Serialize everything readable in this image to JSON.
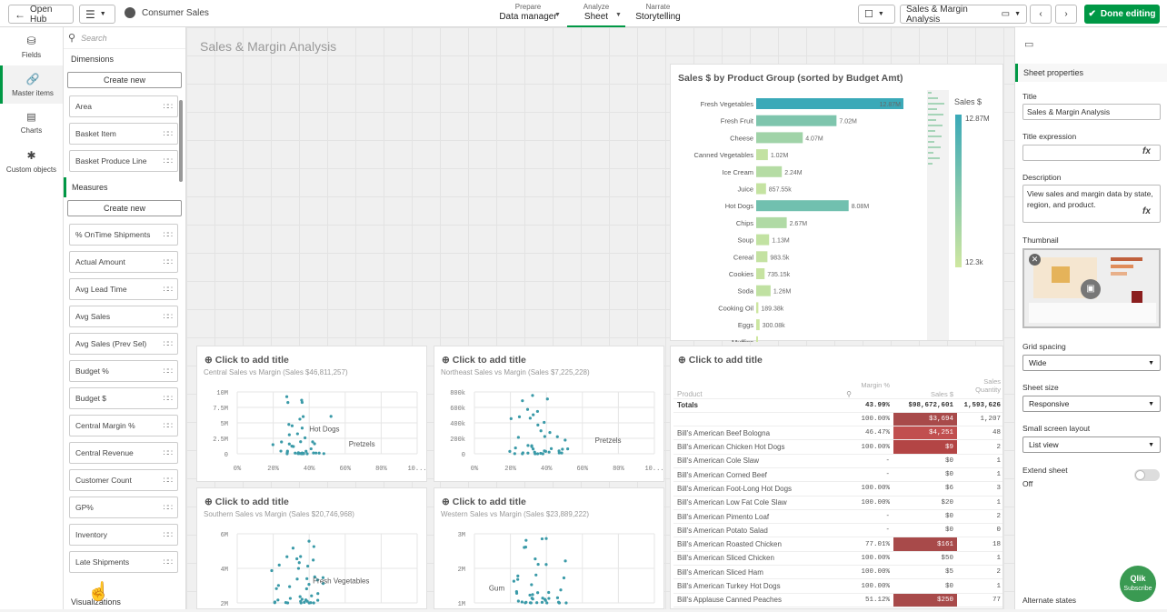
{
  "topbar": {
    "open_hub": "Open Hub",
    "app_name": "Consumer Sales",
    "prepare_label": "Prepare",
    "prepare_value": "Data manager",
    "analyze_label": "Analyze",
    "analyze_value": "Sheet",
    "narrate_label": "Narrate",
    "narrate_value": "Storytelling",
    "sheet_selector": "Sales & Margin Analysis",
    "done_editing": "Done editing"
  },
  "leftnav": {
    "items": [
      {
        "label": "Fields",
        "icon": "database-icon"
      },
      {
        "label": "Master items",
        "icon": "link-icon"
      },
      {
        "label": "Charts",
        "icon": "bar-chart-icon"
      },
      {
        "label": "Custom objects",
        "icon": "puzzle-icon"
      }
    ]
  },
  "assets": {
    "search_placeholder": "Search",
    "dimensions_label": "Dimensions",
    "create_new": "Create new",
    "dimensions": [
      "Area",
      "Basket Item",
      "Basket Produce Line"
    ],
    "measures_label": "Measures",
    "measures": [
      "% OnTime Shipments",
      "Actual Amount",
      "Avg Lead Time",
      "Avg Sales",
      "Avg Sales (Prev Sel)",
      "Budget %",
      "Budget $",
      "Central Margin %",
      "Central Revenue",
      "Customer Count",
      "GP%",
      "Inventory",
      "Late Shipments"
    ],
    "visualizations_label": "Visualizations"
  },
  "sheet": {
    "title": "Sales & Margin Analysis"
  },
  "barchart": {
    "title": "Sales $ by Product Group (sorted by Budget Amt)",
    "legend_title": "Sales $",
    "legend_max": "12.87M",
    "legend_min": "12.3k"
  },
  "chart_data": [
    {
      "type": "bar",
      "title": "Sales $ by Product Group (sorted by Budget Amt)",
      "categories": [
        "Fresh Vegetables",
        "Fresh Fruit",
        "Cheese",
        "Canned Vegetables",
        "Ice Cream",
        "Juice",
        "Hot Dogs",
        "Chips",
        "Soup",
        "Cereal",
        "Cookies",
        "Soda",
        "Cooking Oil",
        "Eggs",
        "Muffins"
      ],
      "values": [
        12870000,
        7020000,
        4070000,
        1020000,
        2240000,
        857550,
        8080000,
        2670000,
        1130000,
        983500,
        735150,
        1260000,
        189380,
        300080,
        0
      ],
      "value_labels": [
        "12.87M",
        "7.02M",
        "4.07M",
        "1.02M",
        "2.24M",
        "857.55k",
        "8.08M",
        "2.67M",
        "1.13M",
        "983.5k",
        "735.15k",
        "1.26M",
        "189.38k",
        "300.08k",
        ""
      ]
    },
    {
      "type": "scatter",
      "subtitle": "Central Sales vs Margin (Sales $46,811,257)",
      "y_ticks": [
        "10M",
        "7.5M",
        "5M",
        "2.5M",
        "0"
      ],
      "x_ticks": [
        "0%",
        "20%",
        "40%",
        "60%",
        "80%",
        "10..."
      ],
      "labels": [
        "Hot Dogs",
        "Pretzels"
      ]
    },
    {
      "type": "scatter",
      "subtitle": "Northeast Sales vs Margin (Sales $7,225,228)",
      "y_ticks": [
        "800k",
        "600k",
        "400k",
        "200k",
        "0"
      ],
      "x_ticks": [
        "0%",
        "20%",
        "40%",
        "60%",
        "80%",
        "10..."
      ],
      "labels": [
        "Pretzels"
      ]
    },
    {
      "type": "scatter",
      "subtitle": "Southern Sales vs Margin (Sales $20,746,968)",
      "y_ticks": [
        "6M",
        "4M",
        "2M"
      ],
      "labels": [
        "Fresh Vegetables"
      ]
    },
    {
      "type": "scatter",
      "subtitle": "Western Sales vs Margin (Sales $23,889,222)",
      "y_ticks": [
        "3M",
        "2M",
        "1M"
      ],
      "labels": [
        "Gum"
      ]
    }
  ],
  "cards": {
    "click_title": "Click to add title",
    "central_sub": "Central Sales vs Margin (Sales $46,811,257)",
    "northeast_sub": "Northeast Sales vs Margin (Sales $7,225,228)",
    "southern_sub": "Southern Sales vs Margin (Sales $20,746,968)",
    "western_sub": "Western Sales vs Margin (Sales $23,889,222)",
    "central_y": [
      "10M",
      "7.5M",
      "5M",
      "2.5M",
      "0"
    ],
    "northeast_y": [
      "800k",
      "600k",
      "400k",
      "200k",
      "0"
    ],
    "southern_y": [
      "6M",
      "4M",
      "2M"
    ],
    "western_y": [
      "3M",
      "2M",
      "1M"
    ],
    "x_ticks": [
      "0%",
      "20%",
      "40%",
      "60%",
      "80%",
      "10..."
    ],
    "label_hotdogs": "Hot Dogs",
    "label_pretzels": "Pretzels",
    "label_freshveg": "Fresh Vegetables",
    "label_gum": "Gum"
  },
  "table": {
    "title": "Click to add title",
    "col_product": "Product",
    "col_margin": "Margin %",
    "col_sales": "Sales $",
    "col_qty": "Sales Quantity",
    "totals": {
      "label": "Totals",
      "margin": "43.99%",
      "sales": "$98,672,601",
      "qty": "1,593,626"
    },
    "rows": [
      {
        "product": "",
        "margin": "100.00%",
        "sales": "$3,694",
        "qty": "1,207",
        "hl": "red"
      },
      {
        "product": "Bill's American Beef Bologna",
        "margin": "46.47%",
        "sales": "$4,251",
        "qty": "48",
        "hl": "red2"
      },
      {
        "product": "Bill's American Chicken Hot Dogs",
        "margin": "100.00%",
        "sales": "$9",
        "qty": "2",
        "hl": "red3"
      },
      {
        "product": "Bill's American Cole Slaw",
        "margin": "-",
        "sales": "$0",
        "qty": "1",
        "hl": ""
      },
      {
        "product": "Bill's American Corned Beef",
        "margin": "-",
        "sales": "$0",
        "qty": "1",
        "hl": ""
      },
      {
        "product": "Bill's American Foot-Long Hot Dogs",
        "margin": "100.00%",
        "sales": "$6",
        "qty": "3",
        "hl": ""
      },
      {
        "product": "Bill's American Low Fat Cole Slaw",
        "margin": "100.00%",
        "sales": "$20",
        "qty": "1",
        "hl": ""
      },
      {
        "product": "Bill's American Pimento Loaf",
        "margin": "-",
        "sales": "$0",
        "qty": "2",
        "hl": ""
      },
      {
        "product": "Bill's American Potato Salad",
        "margin": "-",
        "sales": "$0",
        "qty": "0",
        "hl": ""
      },
      {
        "product": "Bill's American Roasted Chicken",
        "margin": "77.01%",
        "sales": "$161",
        "qty": "18",
        "hl": "red"
      },
      {
        "product": "Bill's American Sliced Chicken",
        "margin": "100.00%",
        "sales": "$50",
        "qty": "1",
        "hl": ""
      },
      {
        "product": "Bill's American Sliced Ham",
        "margin": "100.00%",
        "sales": "$5",
        "qty": "2",
        "hl": ""
      },
      {
        "product": "Bill's American Turkey Hot Dogs",
        "margin": "100.00%",
        "sales": "$0",
        "qty": "1",
        "hl": ""
      },
      {
        "product": "Bill's Applause Canned Peaches",
        "margin": "51.12%",
        "sales": "$250",
        "qty": "77",
        "hl": "red"
      }
    ]
  },
  "props": {
    "panel_title": "Sheet properties",
    "title_label": "Title",
    "title_value": "Sales & Margin Analysis",
    "title_expr_label": "Title expression",
    "fx": "fx",
    "description_label": "Description",
    "description_value": "View sales and margin data by state, region, and product.",
    "thumbnail_label": "Thumbnail",
    "grid_spacing_label": "Grid spacing",
    "grid_spacing_value": "Wide",
    "sheet_size_label": "Sheet size",
    "sheet_size_value": "Responsive",
    "small_screen_label": "Small screen layout",
    "small_screen_value": "List view",
    "extend_label": "Extend sheet",
    "extend_value": "Off",
    "alternate_states": "Alternate states"
  },
  "badge": {
    "line1": "Qlik",
    "line2": "Subscribe"
  },
  "colors": {
    "accent": "#009845",
    "bar_max": "#3aa9b8",
    "bar_min": "#cfe7a0",
    "heat_red": "#b34545"
  }
}
